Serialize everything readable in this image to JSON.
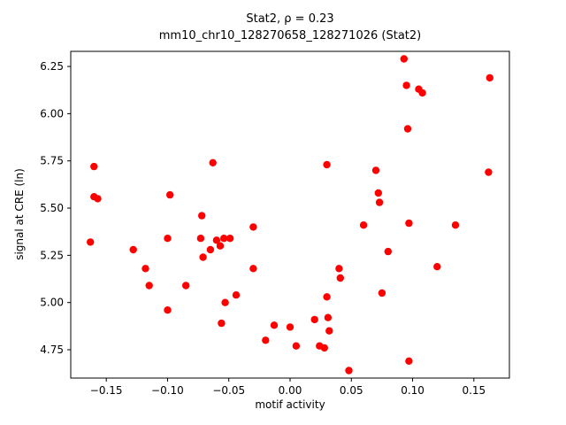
{
  "figure": {
    "title_line1": "Stat2, ρ = 0.23",
    "title_line2": "mm10_chr10_128270658_128271026 (Stat2)",
    "xlabel": "motif activity",
    "ylabel": "signal at CRE (ln)",
    "background_color": "#ffffff",
    "spine_color": "#000000",
    "marker_color": "#ff0000"
  },
  "chart_data": {
    "type": "scatter",
    "title": "Stat2, ρ = 0.23\nmm10_chr10_128270658_128271026 (Stat2)",
    "xlabel": "motif activity",
    "ylabel": "signal at CRE (ln)",
    "legend": "none",
    "grid": false,
    "xlim": [
      -0.179,
      0.179
    ],
    "ylim": [
      4.6,
      6.33
    ],
    "xticks": [
      -0.15,
      -0.1,
      -0.05,
      0.0,
      0.05,
      0.1,
      0.15
    ],
    "xtick_labels": [
      "−0.15",
      "−0.10",
      "−0.05",
      "0.00",
      "0.05",
      "0.10",
      "0.15"
    ],
    "yticks": [
      4.75,
      5.0,
      5.25,
      5.5,
      5.75,
      6.0,
      6.25
    ],
    "ytick_labels": [
      "4.75",
      "5.00",
      "5.25",
      "5.50",
      "5.75",
      "6.00",
      "6.25"
    ],
    "series": [
      {
        "name": "Stat2",
        "color": "#ff0000",
        "points": [
          [
            -0.163,
            5.32
          ],
          [
            -0.16,
            5.72
          ],
          [
            -0.16,
            5.56
          ],
          [
            -0.157,
            5.55
          ],
          [
            -0.128,
            5.28
          ],
          [
            -0.118,
            5.18
          ],
          [
            -0.115,
            5.09
          ],
          [
            -0.1,
            5.34
          ],
          [
            -0.098,
            5.57
          ],
          [
            -0.1,
            4.96
          ],
          [
            -0.085,
            5.09
          ],
          [
            -0.072,
            5.46
          ],
          [
            -0.073,
            5.34
          ],
          [
            -0.071,
            5.24
          ],
          [
            -0.065,
            5.28
          ],
          [
            -0.063,
            5.74
          ],
          [
            -0.06,
            5.33
          ],
          [
            -0.057,
            5.3
          ],
          [
            -0.054,
            5.34
          ],
          [
            -0.049,
            5.34
          ],
          [
            -0.053,
            5.0
          ],
          [
            -0.056,
            4.89
          ],
          [
            -0.044,
            5.04
          ],
          [
            -0.03,
            5.4
          ],
          [
            -0.03,
            5.18
          ],
          [
            -0.02,
            4.8
          ],
          [
            -0.013,
            4.88
          ],
          [
            0.0,
            4.87
          ],
          [
            0.005,
            4.77
          ],
          [
            0.02,
            4.91
          ],
          [
            0.024,
            4.77
          ],
          [
            0.03,
            5.73
          ],
          [
            0.03,
            5.03
          ],
          [
            0.031,
            4.92
          ],
          [
            0.032,
            4.85
          ],
          [
            0.028,
            4.76
          ],
          [
            0.04,
            5.18
          ],
          [
            0.041,
            5.13
          ],
          [
            0.048,
            4.64
          ],
          [
            0.06,
            5.41
          ],
          [
            0.07,
            5.7
          ],
          [
            0.072,
            5.58
          ],
          [
            0.073,
            5.53
          ],
          [
            0.075,
            5.05
          ],
          [
            0.08,
            5.27
          ],
          [
            0.093,
            6.29
          ],
          [
            0.095,
            6.15
          ],
          [
            0.096,
            5.92
          ],
          [
            0.097,
            5.42
          ],
          [
            0.097,
            4.69
          ],
          [
            0.105,
            6.13
          ],
          [
            0.108,
            6.11
          ],
          [
            0.12,
            5.19
          ],
          [
            0.135,
            5.41
          ],
          [
            0.163,
            6.19
          ],
          [
            0.162,
            5.69
          ]
        ]
      }
    ]
  }
}
